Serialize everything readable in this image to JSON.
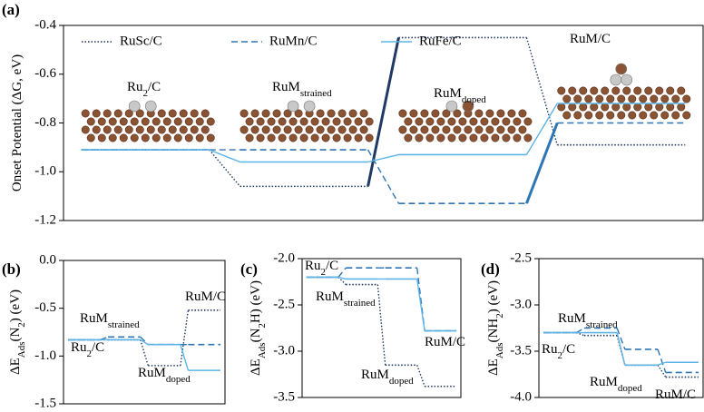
{
  "chart_data": [
    {
      "type": "step",
      "title": "(a)",
      "ylabel": [
        {
          "text": "Onset Potential (ΔG, eV)"
        }
      ],
      "categories": [
        [
          {
            "text": "Ru"
          },
          {
            "sub": "2"
          },
          {
            "text": "/C"
          }
        ],
        [
          {
            "text": "RuM"
          },
          {
            "sub": "strained"
          }
        ],
        [
          {
            "text": "RuM"
          },
          {
            "sub": "doped"
          }
        ],
        [
          {
            "text": "RuM/C"
          }
        ]
      ],
      "series": [
        {
          "name": "RuSc/C",
          "color": "#1f3864",
          "style": "dotted",
          "values": [
            -0.91,
            -1.06,
            -0.45,
            -0.89
          ],
          "highlight_step": 1
        },
        {
          "name": "RuMn/C",
          "color": "#2e75b6",
          "style": "dashed",
          "values": [
            -0.91,
            -0.91,
            -1.13,
            -0.8
          ],
          "highlight_step": 2
        },
        {
          "name": "RuFe/C",
          "color": "#5bb4e5",
          "style": "solid",
          "values": [
            -0.91,
            -0.96,
            -0.93,
            -0.72
          ]
        }
      ],
      "ylim": [
        -1.2,
        -0.4
      ],
      "yticks": [
        -0.4,
        -0.6,
        -0.8,
        {
          "value": -1,
          "label": "-1.0"
        },
        -1.2
      ],
      "legend": "top-left"
    },
    {
      "type": "step",
      "title": "(b)",
      "ylabel": [
        {
          "text": "ΔE"
        },
        {
          "sub": "Ads"
        },
        {
          "text": "(N"
        },
        {
          "sub": "2"
        },
        {
          "text": ") (eV)"
        }
      ],
      "categories": [
        [
          {
            "text": "Ru"
          },
          {
            "sub": "2"
          },
          {
            "text": "/C"
          }
        ],
        [
          {
            "text": "RuM"
          },
          {
            "sub": "strained"
          }
        ],
        [
          {
            "text": "RuM"
          },
          {
            "sub": "doped"
          }
        ],
        [
          {
            "text": "RuM/C"
          }
        ]
      ],
      "series": [
        {
          "name": "RuSc/C",
          "color": "#1f3864",
          "style": "dotted",
          "values": [
            -0.83,
            -0.83,
            -1.1,
            -0.52
          ]
        },
        {
          "name": "RuMn/C",
          "color": "#2e75b6",
          "style": "dashed",
          "values": [
            -0.83,
            -0.8,
            -0.88,
            -0.88
          ]
        },
        {
          "name": "RuFe/C",
          "color": "#5bb4e5",
          "style": "solid",
          "values": [
            -0.83,
            -0.83,
            -0.88,
            -1.15
          ]
        }
      ],
      "ylim": [
        -1.5,
        0
      ],
      "yticks": [
        {
          "value": 0,
          "label": "0.0"
        },
        -0.5,
        {
          "value": -1,
          "label": "-1.0"
        },
        -1.5
      ]
    },
    {
      "type": "step",
      "title": "(c)",
      "ylabel": [
        {
          "text": "ΔE"
        },
        {
          "sub": "Ads"
        },
        {
          "text": "(N"
        },
        {
          "sub": "2"
        },
        {
          "text": "H) (eV)"
        }
      ],
      "categories": [
        [
          {
            "text": "Ru"
          },
          {
            "sub": "2"
          },
          {
            "text": "/C"
          }
        ],
        [
          {
            "text": "RuM"
          },
          {
            "sub": "strained"
          }
        ],
        [
          {
            "text": "RuM"
          },
          {
            "sub": "doped"
          }
        ],
        [
          {
            "text": "RuM/C"
          }
        ]
      ],
      "series": [
        {
          "name": "RuSc/C",
          "color": "#1f3864",
          "style": "dotted",
          "values": [
            -2.2,
            -2.28,
            -3.15,
            -3.38
          ]
        },
        {
          "name": "RuMn/C",
          "color": "#2e75b6",
          "style": "dashed",
          "values": [
            -2.2,
            -2.1,
            -2.1,
            -2.78
          ]
        },
        {
          "name": "RuFe/C",
          "color": "#5bb4e5",
          "style": "solid",
          "values": [
            -2.2,
            -2.22,
            -2.22,
            -2.78
          ]
        }
      ],
      "ylim": [
        -3.5,
        -2
      ],
      "yticks": [
        {
          "value": -2,
          "label": "-2.0"
        },
        -2.5,
        {
          "value": -3,
          "label": "-3.0"
        },
        -3.5
      ]
    },
    {
      "type": "step",
      "title": "(d)",
      "ylabel": [
        {
          "text": "ΔE"
        },
        {
          "sub": "Ads"
        },
        {
          "text": "(NH"
        },
        {
          "sub": "2"
        },
        {
          "text": ") (eV)"
        }
      ],
      "categories": [
        [
          {
            "text": "Ru"
          },
          {
            "sub": "2"
          },
          {
            "text": "/C"
          }
        ],
        [
          {
            "text": "RuM"
          },
          {
            "sub": "strained"
          }
        ],
        [
          {
            "text": "RuM"
          },
          {
            "sub": "doped"
          }
        ],
        [
          {
            "text": "RuM/C"
          }
        ]
      ],
      "series": [
        {
          "name": "RuSc/C",
          "color": "#1f3864",
          "style": "dotted",
          "values": [
            -3.3,
            -3.33,
            -3.65,
            -3.78
          ]
        },
        {
          "name": "RuMn/C",
          "color": "#2e75b6",
          "style": "dashed",
          "values": [
            -3.3,
            -3.25,
            -3.48,
            -3.73
          ]
        },
        {
          "name": "RuFe/C",
          "color": "#5bb4e5",
          "style": "solid",
          "values": [
            -3.3,
            -3.3,
            -3.65,
            -3.62
          ]
        }
      ],
      "ylim": [
        -4,
        -2.5
      ],
      "yticks": [
        -2.5,
        {
          "value": -3,
          "label": "-3.0"
        },
        -3.5,
        {
          "value": -4,
          "label": "-4.0"
        }
      ]
    }
  ]
}
